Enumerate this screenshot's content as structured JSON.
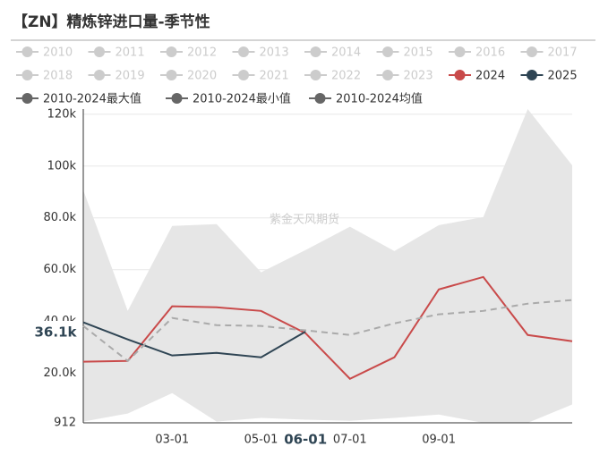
{
  "chart_data": {
    "type": "line",
    "title": "【ZN】精炼锌进口量-季节性",
    "watermark": "紫金天风期货",
    "categories": [
      null,
      null,
      "03-01",
      null,
      "05-01",
      "06-01",
      "07-01",
      null,
      "09-01",
      null,
      null,
      null
    ],
    "ylim": [
      912,
      122000
    ],
    "yticks": [
      912,
      {
        "value": 20000,
        "label": "20.0k"
      },
      {
        "value": 40000,
        "label": "40.0k"
      },
      {
        "value": 60000,
        "label": "60.0k"
      },
      {
        "value": 80000,
        "label": "80.0k"
      },
      {
        "value": 100000,
        "label": "100k"
      },
      {
        "value": 120000,
        "label": "120k"
      }
    ],
    "grid": true,
    "axis_pointer": {
      "category": "06-01",
      "value": 36100,
      "label": "36.1k"
    },
    "series": [
      {
        "name": "2010",
        "color": "#cccccc",
        "visible": false
      },
      {
        "name": "2011",
        "color": "#cccccc",
        "visible": false
      },
      {
        "name": "2012",
        "color": "#cccccc",
        "visible": false
      },
      {
        "name": "2013",
        "color": "#cccccc",
        "visible": false
      },
      {
        "name": "2014",
        "color": "#cccccc",
        "visible": false
      },
      {
        "name": "2015",
        "color": "#cccccc",
        "visible": false
      },
      {
        "name": "2016",
        "color": "#cccccc",
        "visible": false
      },
      {
        "name": "2017",
        "color": "#cccccc",
        "visible": false
      },
      {
        "name": "2018",
        "color": "#cccccc",
        "visible": false
      },
      {
        "name": "2019",
        "color": "#cccccc",
        "visible": false
      },
      {
        "name": "2020",
        "color": "#cccccc",
        "visible": false
      },
      {
        "name": "2021",
        "color": "#cccccc",
        "visible": false
      },
      {
        "name": "2022",
        "color": "#cccccc",
        "visible": false
      },
      {
        "name": "2023",
        "color": "#cccccc",
        "visible": false
      },
      {
        "name": "2024",
        "color": "#c94a4a",
        "values": [
          24500,
          24800,
          45900,
          45500,
          44100,
          35500,
          17900,
          26200,
          52400,
          57200,
          34800,
          32400
        ]
      },
      {
        "name": "2025",
        "color": "#2f4554",
        "values": [
          39700,
          33100,
          26900,
          27900,
          26200,
          36100,
          null,
          null,
          null,
          null,
          null,
          null
        ]
      },
      {
        "name": "2010-2024最大值",
        "color": "#e6e6e6",
        "role": "band-top",
        "values": [
          90700,
          44100,
          76900,
          77600,
          59000,
          67600,
          76600,
          67200,
          77200,
          80300,
          122000,
          100300
        ]
      },
      {
        "name": "2010-2024最小值",
        "color": "#e6e6e6",
        "role": "band-bottom",
        "values": [
          1400,
          4500,
          12400,
          1400,
          2800,
          2100,
          1700,
          2800,
          4100,
          912,
          912,
          8000
        ]
      },
      {
        "name": "2010-2024均值",
        "color": "#aaaaaa",
        "dashed": true,
        "values": [
          38300,
          24800,
          41400,
          38600,
          38300,
          36600,
          34800,
          39300,
          42800,
          44100,
          46900,
          48300
        ]
      }
    ]
  }
}
